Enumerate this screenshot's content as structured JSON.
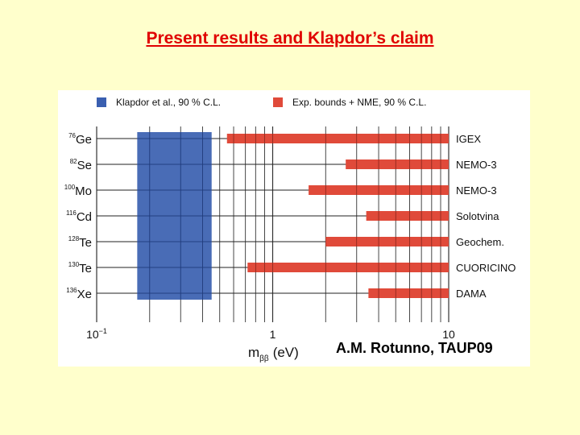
{
  "slide": {
    "title": "Present results and Klapdor’s claim"
  },
  "figure": {
    "credit": "A.M. Rotunno, TAUP09"
  },
  "chart_data": {
    "type": "bar",
    "orientation": "horizontal",
    "xscale": "log",
    "xlabel_main": "m",
    "xlabel_sub": "ββ",
    "xlabel_unit": "(eV)",
    "xlim": [
      0.1,
      10
    ],
    "xticks": [
      {
        "value": 0.1,
        "base": "10",
        "exp": "−1"
      },
      {
        "value": 1,
        "base": "1",
        "exp": ""
      },
      {
        "value": 10,
        "base": "10",
        "exp": ""
      }
    ],
    "grid": true,
    "legend_position": "top",
    "legend": [
      {
        "label": "Klapdor et al., 90 % C.L.",
        "color": "#3a5fb0"
      },
      {
        "label": "Exp. bounds + NME, 90 % C.L.",
        "color": "#e04a3a"
      }
    ],
    "categories": [
      {
        "mass": "76",
        "element": "Ge",
        "experiment": "IGEX"
      },
      {
        "mass": "82",
        "element": "Se",
        "experiment": "NEMO-3"
      },
      {
        "mass": "100",
        "element": "Mo",
        "experiment": "NEMO-3"
      },
      {
        "mass": "116",
        "element": "Cd",
        "experiment": "Solotvina"
      },
      {
        "mass": "128",
        "element": "Te",
        "experiment": "Geochem."
      },
      {
        "mass": "130",
        "element": "Te",
        "experiment": "CUORICINO"
      },
      {
        "mass": "136",
        "element": "Xe",
        "experiment": "DAMA"
      }
    ],
    "series": [
      {
        "name": "Klapdor et al., 90 % C.L.",
        "color": "#3a5fb0",
        "band": [
          0.17,
          0.45
        ]
      },
      {
        "name": "Exp. bounds + NME, 90 % C.L.",
        "color": "#e04a3a",
        "ranges": [
          [
            0.55,
            10
          ],
          [
            2.6,
            10
          ],
          [
            1.6,
            10
          ],
          [
            3.4,
            10
          ],
          [
            2.0,
            10
          ],
          [
            0.72,
            10
          ],
          [
            3.5,
            10
          ]
        ]
      }
    ]
  }
}
